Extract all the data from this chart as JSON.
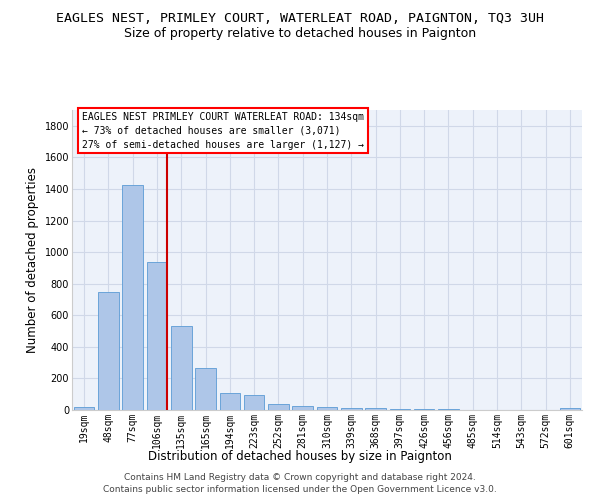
{
  "title": "EAGLES NEST, PRIMLEY COURT, WATERLEAT ROAD, PAIGNTON, TQ3 3UH",
  "subtitle": "Size of property relative to detached houses in Paignton",
  "xlabel": "Distribution of detached houses by size in Paignton",
  "ylabel": "Number of detached properties",
  "footer_line1": "Contains HM Land Registry data © Crown copyright and database right 2024.",
  "footer_line2": "Contains public sector information licensed under the Open Government Licence v3.0.",
  "annotation_title": "EAGLES NEST PRIMLEY COURT WATERLEAT ROAD: 134sqm",
  "annotation_line2": "← 73% of detached houses are smaller (3,071)",
  "annotation_line3": "27% of semi-detached houses are larger (1,127) →",
  "bar_color": "#aec6e8",
  "bar_edge_color": "#5b9bd5",
  "marker_color": "#cc0000",
  "categories": [
    "19sqm",
    "48sqm",
    "77sqm",
    "106sqm",
    "135sqm",
    "165sqm",
    "194sqm",
    "223sqm",
    "252sqm",
    "281sqm",
    "310sqm",
    "339sqm",
    "368sqm",
    "397sqm",
    "426sqm",
    "456sqm",
    "485sqm",
    "514sqm",
    "543sqm",
    "572sqm",
    "601sqm"
  ],
  "values": [
    22,
    745,
    1425,
    940,
    535,
    265,
    105,
    95,
    38,
    28,
    20,
    12,
    10,
    8,
    5,
    4,
    3,
    2,
    2,
    2,
    10
  ],
  "marker_bin_index": 3,
  "ylim": [
    0,
    1900
  ],
  "yticks": [
    0,
    200,
    400,
    600,
    800,
    1000,
    1200,
    1400,
    1600,
    1800
  ],
  "grid_color": "#d0d8e8",
  "bg_color": "#edf2fa",
  "title_fontsize": 9.5,
  "subtitle_fontsize": 9,
  "axis_label_fontsize": 8.5,
  "tick_fontsize": 7,
  "footer_fontsize": 6.5,
  "annotation_fontsize": 7
}
